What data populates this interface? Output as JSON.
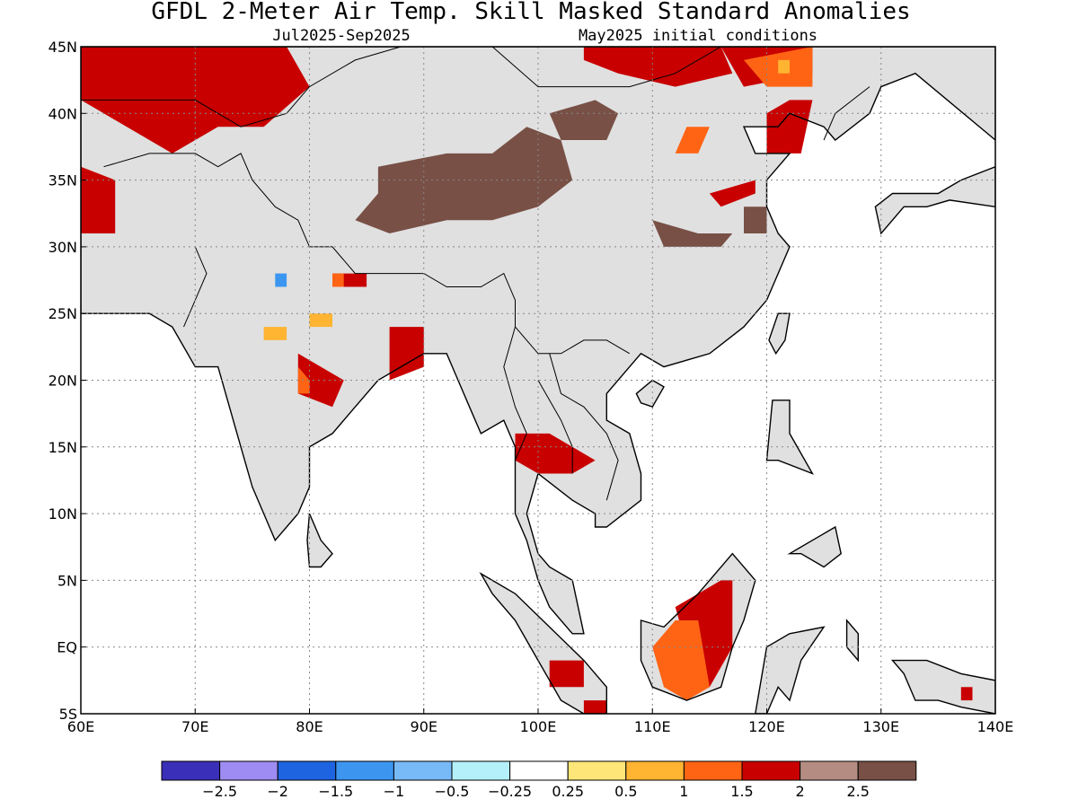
{
  "title": "GFDL 2-Meter Air Temp. Skill Masked Standard Anomalies",
  "period": "Jul2025-Sep2025",
  "init": "May2025 initial conditions",
  "map": {
    "lon_range": [
      60,
      140
    ],
    "lat_range": [
      -5,
      45
    ],
    "lon_ticks": [
      {
        "v": 60,
        "label": "60E"
      },
      {
        "v": 70,
        "label": "70E"
      },
      {
        "v": 80,
        "label": "80E"
      },
      {
        "v": 90,
        "label": "90E"
      },
      {
        "v": 100,
        "label": "100E"
      },
      {
        "v": 110,
        "label": "110E"
      },
      {
        "v": 120,
        "label": "120E"
      },
      {
        "v": 130,
        "label": "130E"
      },
      {
        "v": 140,
        "label": "140E"
      }
    ],
    "lat_ticks": [
      {
        "v": 45,
        "label": "45N"
      },
      {
        "v": 40,
        "label": "40N"
      },
      {
        "v": 35,
        "label": "35N"
      },
      {
        "v": 30,
        "label": "30N"
      },
      {
        "v": 25,
        "label": "25N"
      },
      {
        "v": 20,
        "label": "20N"
      },
      {
        "v": 15,
        "label": "15N"
      },
      {
        "v": 10,
        "label": "10N"
      },
      {
        "v": 5,
        "label": "5N"
      },
      {
        "v": 0,
        "label": "EQ"
      },
      {
        "v": -5,
        "label": "5S"
      }
    ],
    "grid_lines": "dotted",
    "land_mask_color": "#e0e0e0",
    "coast_color": "#000000"
  },
  "colorbar": {
    "colors": [
      "#3a2fb8",
      "#9e8cf2",
      "#1e64e0",
      "#3c96f0",
      "#78b9f8",
      "#b4f0fa",
      "#ffffff",
      "#ffe678",
      "#ffb432",
      "#ff6414",
      "#c80000",
      "#b48c82",
      "#785046"
    ],
    "labels": [
      "-2.5",
      "-2",
      "-1.5",
      "-1",
      "-0.5",
      "-0.25",
      "0.25",
      "0.5",
      "1",
      "1.5",
      "2",
      "2.5"
    ]
  },
  "anomaly_regions": [
    {
      "level": "2",
      "color": "#c80000",
      "lonlat": [
        [
          60,
          45
        ],
        [
          78,
          45
        ],
        [
          80,
          42
        ],
        [
          76,
          39
        ],
        [
          72,
          39
        ],
        [
          68,
          37
        ],
        [
          66,
          38
        ],
        [
          62,
          40
        ],
        [
          60,
          41
        ]
      ]
    },
    {
      "level": "2",
      "color": "#c80000",
      "lonlat": [
        [
          60,
          36
        ],
        [
          63,
          35
        ],
        [
          63,
          31
        ],
        [
          60,
          31
        ]
      ]
    },
    {
      "level": "2",
      "color": "#c80000",
      "lonlat": [
        [
          104,
          45
        ],
        [
          116,
          45
        ],
        [
          117,
          43
        ],
        [
          112,
          42
        ],
        [
          107,
          43
        ],
        [
          104,
          44
        ]
      ]
    },
    {
      "level": "2",
      "color": "#c80000",
      "lonlat": [
        [
          116,
          45
        ],
        [
          124,
          45
        ],
        [
          124,
          43
        ],
        [
          118,
          42
        ]
      ]
    },
    {
      "level": "2",
      "color": "#c80000",
      "lonlat": [
        [
          122,
          41
        ],
        [
          124,
          41
        ],
        [
          123,
          37
        ],
        [
          120,
          37
        ],
        [
          120,
          40
        ]
      ]
    },
    {
      "level": "2",
      "color": "#c80000",
      "lonlat": [
        [
          87,
          24
        ],
        [
          90,
          24
        ],
        [
          90,
          21
        ],
        [
          87,
          20
        ]
      ]
    },
    {
      "level": "2",
      "color": "#c80000",
      "lonlat": [
        [
          79,
          22
        ],
        [
          83,
          20
        ],
        [
          82,
          18
        ],
        [
          79,
          19
        ]
      ]
    },
    {
      "level": "2",
      "color": "#c80000",
      "lonlat": [
        [
          98,
          16
        ],
        [
          101,
          16
        ],
        [
          105,
          14
        ],
        [
          103,
          13
        ],
        [
          100,
          13
        ],
        [
          98,
          14
        ]
      ]
    },
    {
      "level": "2",
      "color": "#c80000",
      "lonlat": [
        [
          112,
          3
        ],
        [
          116,
          5
        ],
        [
          117,
          5
        ],
        [
          117,
          0
        ],
        [
          115,
          -3
        ],
        [
          114,
          -2
        ],
        [
          113,
          0
        ]
      ]
    },
    {
      "level": "2",
      "color": "#c80000",
      "lonlat": [
        [
          101,
          -1
        ],
        [
          104,
          -1
        ],
        [
          104,
          -3
        ],
        [
          101,
          -3
        ]
      ]
    },
    {
      "level": "2",
      "color": "#c80000",
      "lonlat": [
        [
          104,
          -4
        ],
        [
          106,
          -4
        ],
        [
          106,
          -5
        ],
        [
          104,
          -5
        ]
      ]
    },
    {
      "level": "2",
      "color": "#c80000",
      "lonlat": [
        [
          82,
          28
        ],
        [
          85,
          28
        ],
        [
          85,
          27
        ],
        [
          82,
          27
        ]
      ]
    },
    {
      "level": "2",
      "color": "#c80000",
      "lonlat": [
        [
          137,
          -3
        ],
        [
          138,
          -3
        ],
        [
          138,
          -4
        ],
        [
          137,
          -4
        ]
      ]
    },
    {
      "level": "2",
      "color": "#c80000",
      "lonlat": [
        [
          115,
          34
        ],
        [
          119,
          35
        ],
        [
          119,
          34
        ],
        [
          116,
          33
        ]
      ]
    },
    {
      "level": "1.5",
      "color": "#ff6414",
      "lonlat": [
        [
          110,
          0
        ],
        [
          112,
          2
        ],
        [
          114,
          2
        ],
        [
          115,
          -3
        ],
        [
          113,
          -4
        ],
        [
          111,
          -3
        ]
      ]
    },
    {
      "level": "1.5",
      "color": "#ff6414",
      "lonlat": [
        [
          118,
          44
        ],
        [
          124,
          45
        ],
        [
          124,
          42
        ],
        [
          120,
          42
        ]
      ]
    },
    {
      "level": "1.5",
      "color": "#ff6414",
      "lonlat": [
        [
          113,
          39
        ],
        [
          115,
          39
        ],
        [
          114,
          37
        ],
        [
          112,
          37
        ]
      ]
    },
    {
      "level": "1.5",
      "color": "#ff6414",
      "lonlat": [
        [
          79,
          21
        ],
        [
          80,
          20
        ],
        [
          80,
          19
        ],
        [
          79,
          19
        ]
      ]
    },
    {
      "level": "1.5",
      "color": "#ff6414",
      "lonlat": [
        [
          82,
          28
        ],
        [
          83,
          28
        ],
        [
          83,
          27
        ],
        [
          82,
          27
        ]
      ]
    },
    {
      "level": "1",
      "color": "#ffb432",
      "lonlat": [
        [
          76,
          24
        ],
        [
          78,
          24
        ],
        [
          78,
          23
        ],
        [
          76,
          23
        ]
      ]
    },
    {
      "level": "1",
      "color": "#ffb432",
      "lonlat": [
        [
          80,
          25
        ],
        [
          82,
          25
        ],
        [
          82,
          24
        ],
        [
          80,
          24
        ]
      ]
    },
    {
      "level": "1",
      "color": "#ffb432",
      "lonlat": [
        [
          121,
          44
        ],
        [
          122,
          44
        ],
        [
          122,
          43
        ],
        [
          121,
          43
        ]
      ]
    },
    {
      "level": "-1",
      "color": "#3c96f0",
      "lonlat": [
        [
          77,
          28
        ],
        [
          78,
          28
        ],
        [
          78,
          27
        ],
        [
          77,
          27
        ]
      ]
    },
    {
      "level": "2.5",
      "color": "#785046",
      "lonlat": [
        [
          86,
          36
        ],
        [
          92,
          37
        ],
        [
          96,
          37
        ],
        [
          99,
          39
        ],
        [
          102,
          38
        ],
        [
          103,
          35
        ],
        [
          100,
          33
        ],
        [
          96,
          32
        ],
        [
          92,
          32
        ],
        [
          87,
          31
        ],
        [
          84,
          32
        ],
        [
          86,
          34
        ]
      ]
    },
    {
      "level": "2.5",
      "color": "#785046",
      "lonlat": [
        [
          101,
          40
        ],
        [
          105,
          41
        ],
        [
          107,
          40
        ],
        [
          106,
          38
        ],
        [
          102,
          38
        ]
      ]
    },
    {
      "level": "2.5",
      "color": "#785046",
      "lonlat": [
        [
          110,
          32
        ],
        [
          114,
          31
        ],
        [
          117,
          31
        ],
        [
          116,
          30
        ],
        [
          111,
          30
        ]
      ]
    },
    {
      "level": "2.5",
      "color": "#785046",
      "lonlat": [
        [
          118,
          33
        ],
        [
          120,
          33
        ],
        [
          120,
          31
        ],
        [
          118,
          31
        ]
      ]
    }
  ]
}
